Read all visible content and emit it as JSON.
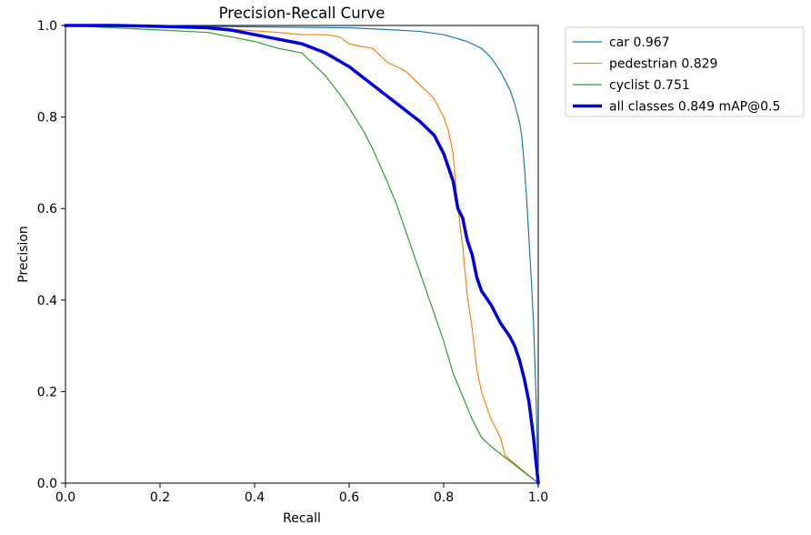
{
  "chart_data": {
    "type": "line",
    "title": "Precision-Recall Curve",
    "xlabel": "Recall",
    "ylabel": "Precision",
    "xlim": [
      0,
      1
    ],
    "ylim": [
      0,
      1
    ],
    "xticks": [
      "0.0",
      "0.2",
      "0.4",
      "0.6",
      "0.8",
      "1.0"
    ],
    "yticks": [
      "0.0",
      "0.2",
      "0.4",
      "0.6",
      "0.8",
      "1.0"
    ],
    "grid": false,
    "legend_position": "outside-top-right",
    "series": [
      {
        "name": "car 0.967",
        "color": "#1f77b4",
        "thick": false,
        "x": [
          0,
          0.1,
          0.2,
          0.3,
          0.4,
          0.5,
          0.6,
          0.7,
          0.75,
          0.8,
          0.85,
          0.88,
          0.9,
          0.92,
          0.94,
          0.95,
          0.96,
          0.965,
          0.97,
          0.975,
          0.98,
          0.985,
          0.99,
          0.995,
          1.0
        ],
        "y": [
          1.0,
          1.0,
          1.0,
          0.998,
          0.997,
          0.996,
          0.995,
          0.99,
          0.987,
          0.98,
          0.965,
          0.95,
          0.93,
          0.9,
          0.86,
          0.83,
          0.79,
          0.76,
          0.7,
          0.63,
          0.54,
          0.45,
          0.35,
          0.2,
          0.0
        ]
      },
      {
        "name": "pedestrian 0.829",
        "color": "#ff7f0e",
        "thick": false,
        "x": [
          0,
          0.15,
          0.3,
          0.45,
          0.5,
          0.55,
          0.58,
          0.6,
          0.62,
          0.65,
          0.68,
          0.7,
          0.72,
          0.74,
          0.76,
          0.78,
          0.8,
          0.81,
          0.82,
          0.83,
          0.84,
          0.85,
          0.86,
          0.87,
          0.88,
          0.9,
          0.92,
          0.93,
          1.0
        ],
        "y": [
          1.0,
          1.0,
          0.995,
          0.985,
          0.98,
          0.98,
          0.975,
          0.96,
          0.955,
          0.95,
          0.92,
          0.91,
          0.9,
          0.88,
          0.86,
          0.84,
          0.8,
          0.77,
          0.72,
          0.6,
          0.52,
          0.41,
          0.34,
          0.25,
          0.2,
          0.14,
          0.1,
          0.06,
          0.0
        ]
      },
      {
        "name": "cyclist 0.751",
        "color": "#2ca02c",
        "thick": false,
        "x": [
          0,
          0.1,
          0.2,
          0.3,
          0.35,
          0.4,
          0.45,
          0.5,
          0.55,
          0.58,
          0.6,
          0.63,
          0.65,
          0.68,
          0.7,
          0.72,
          0.74,
          0.76,
          0.78,
          0.8,
          0.82,
          0.84,
          0.86,
          0.88,
          0.9,
          1.0
        ],
        "y": [
          1.0,
          0.995,
          0.99,
          0.985,
          0.975,
          0.965,
          0.95,
          0.94,
          0.89,
          0.85,
          0.82,
          0.77,
          0.73,
          0.66,
          0.61,
          0.55,
          0.49,
          0.43,
          0.37,
          0.31,
          0.24,
          0.19,
          0.14,
          0.1,
          0.08,
          0.0
        ]
      },
      {
        "name": "all classes 0.849 mAP@0.5",
        "color": "#0000dd",
        "thick": true,
        "x": [
          0,
          0.1,
          0.2,
          0.3,
          0.35,
          0.4,
          0.45,
          0.5,
          0.55,
          0.6,
          0.65,
          0.7,
          0.75,
          0.78,
          0.8,
          0.82,
          0.83,
          0.84,
          0.85,
          0.86,
          0.87,
          0.88,
          0.9,
          0.92,
          0.94,
          0.95,
          0.96,
          0.97,
          0.98,
          0.99,
          1.0
        ],
        "y": [
          1.0,
          1.0,
          0.998,
          0.995,
          0.99,
          0.98,
          0.97,
          0.96,
          0.94,
          0.91,
          0.87,
          0.83,
          0.79,
          0.76,
          0.72,
          0.66,
          0.6,
          0.58,
          0.53,
          0.5,
          0.45,
          0.42,
          0.39,
          0.35,
          0.32,
          0.3,
          0.27,
          0.23,
          0.18,
          0.1,
          0.0
        ]
      }
    ]
  }
}
